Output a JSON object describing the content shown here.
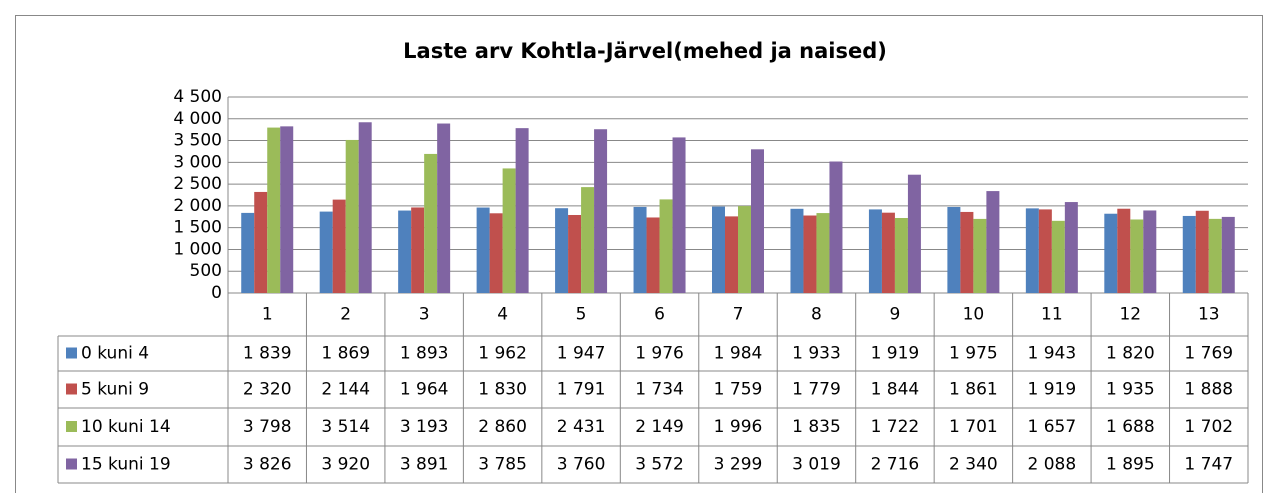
{
  "chart_data": {
    "type": "bar",
    "title": "Laste arv Kohtla-Järvel(mehed ja naised)",
    "categories": [
      "1",
      "2",
      "3",
      "4",
      "5",
      "6",
      "7",
      "8",
      "9",
      "10",
      "11",
      "12",
      "13"
    ],
    "series": [
      {
        "name": "0 kuni 4",
        "color": "#4f81bd",
        "values": [
          1839,
          1869,
          1893,
          1962,
          1947,
          1976,
          1984,
          1933,
          1919,
          1975,
          1943,
          1820,
          1769
        ],
        "value_labels": [
          "1 839",
          "1 869",
          "1 893",
          "1 962",
          "1 947",
          "1 976",
          "1 984",
          "1 933",
          "1 919",
          "1 975",
          "1 943",
          "1 820",
          "1 769"
        ]
      },
      {
        "name": "5 kuni 9",
        "color": "#c0504d",
        "values": [
          2320,
          2144,
          1964,
          1830,
          1791,
          1734,
          1759,
          1779,
          1844,
          1861,
          1919,
          1935,
          1888
        ],
        "value_labels": [
          "2 320",
          "2 144",
          "1 964",
          "1 830",
          "1 791",
          "1 734",
          "1 759",
          "1 779",
          "1 844",
          "1 861",
          "1 919",
          "1 935",
          "1 888"
        ]
      },
      {
        "name": "10 kuni 14",
        "color": "#9bbb59",
        "values": [
          3798,
          3514,
          3193,
          2860,
          2431,
          2149,
          1996,
          1835,
          1722,
          1701,
          1657,
          1688,
          1702
        ],
        "value_labels": [
          "3 798",
          "3 514",
          "3 193",
          "2 860",
          "2 431",
          "2 149",
          "1 996",
          "1 835",
          "1 722",
          "1 701",
          "1 657",
          "1 688",
          "1 702"
        ]
      },
      {
        "name": "15 kuni 19",
        "color": "#8064a2",
        "values": [
          3826,
          3920,
          3891,
          3785,
          3760,
          3572,
          3299,
          3019,
          2716,
          2340,
          2088,
          1895,
          1747
        ],
        "value_labels": [
          "3 826",
          "3 920",
          "3 891",
          "3 785",
          "3 760",
          "3 572",
          "3 299",
          "3 019",
          "2 716",
          "2 340",
          "2 088",
          "1 895",
          "1 747"
        ]
      }
    ],
    "ylim": [
      0,
      4500
    ],
    "yticks": [
      0,
      500,
      {
        "value": 1000,
        "label": "1 000"
      },
      {
        "value": 1500,
        "label": "1 500"
      },
      {
        "value": 2000,
        "label": "2 000"
      },
      {
        "value": 2500,
        "label": "2 500"
      },
      {
        "value": 3000,
        "label": "3 000"
      },
      {
        "value": 3500,
        "label": "3 500"
      },
      {
        "value": 4000,
        "label": "4 000"
      },
      {
        "value": 4500,
        "label": "4 500"
      }
    ],
    "grid": true
  }
}
